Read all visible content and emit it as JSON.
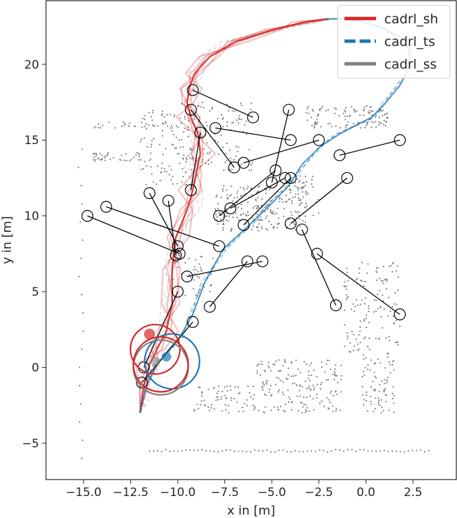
{
  "chart_data": {
    "type": "scatter",
    "xlabel": "x in [m]",
    "ylabel": "y in [m]",
    "xlim": [
      -17.0,
      4.8
    ],
    "ylim": [
      -7.4,
      24.2
    ],
    "xticks": [
      -15.0,
      -12.5,
      -10.0,
      -7.5,
      -5.0,
      -2.5,
      0.0,
      2.5
    ],
    "yticks": [
      -5,
      0,
      5,
      10,
      15,
      20
    ],
    "xtick_labels": [
      "−15.0",
      "−12.5",
      "−10.0",
      "−7.5",
      "−5.0",
      "−2.5",
      "0.0",
      "2.5"
    ],
    "ytick_labels": [
      "−5",
      "0",
      "5",
      "10",
      "15",
      "20"
    ],
    "grid": false,
    "legend_position": "top-right",
    "series": [
      {
        "name": "cadrl_sh",
        "color": "#d62728",
        "line_style": "solid",
        "x": [
          -12.0,
          -11.8,
          -11.5,
          -11.1,
          -10.6,
          -10.3,
          -10.3,
          -10.1,
          -9.5,
          -9.2,
          -9.0,
          -8.8,
          -8.9,
          -9.3,
          -9.5,
          -9.4,
          -9.1,
          -8.3,
          -6.9,
          -4.9,
          -3.2,
          -2.0
        ],
        "y": [
          -3.0,
          -1.2,
          0.2,
          1.2,
          2.4,
          4.2,
          6.5,
          8.6,
          10.4,
          11.7,
          12.9,
          14.1,
          15.3,
          16.5,
          17.4,
          18.4,
          19.4,
          20.5,
          21.5,
          22.3,
          22.8,
          23.0
        ]
      },
      {
        "name": "cadrl_ts",
        "color": "#1f77b4",
        "line_style": "dashed",
        "x": [
          -12.0,
          -11.7,
          -11.2,
          -10.6,
          -9.9,
          -9.2,
          -8.6,
          -7.6,
          -6.2,
          -5.1,
          -4.1,
          -3.4,
          -2.4,
          -1.4,
          -0.5,
          0.3,
          1.0,
          1.8,
          2.3,
          2.3,
          1.8,
          0.9,
          -0.2,
          -1.3,
          -2.1
        ],
        "y": [
          -3.0,
          -1.3,
          0.0,
          1.0,
          2.0,
          3.5,
          5.5,
          7.8,
          9.4,
          10.7,
          12.0,
          13.4,
          14.6,
          15.4,
          16.0,
          16.5,
          17.4,
          18.6,
          19.8,
          20.9,
          21.8,
          22.4,
          22.8,
          23.0,
          23.0
        ]
      },
      {
        "name": "cadrl_ss",
        "color": "#7f7f7f",
        "line_style": "solid"
      }
    ],
    "pedestrians": [
      [
        [
          -14.8,
          10.0
        ],
        [
          -9.9,
          7.5
        ]
      ],
      [
        [
          -13.8,
          10.6
        ],
        [
          -7.8,
          8.0
        ]
      ],
      [
        [
          -10.5,
          11.0
        ],
        [
          -10.1,
          7.4
        ]
      ],
      [
        [
          -11.5,
          11.5
        ],
        [
          -10.0,
          8.0
        ]
      ],
      [
        [
          -9.5,
          6.0
        ],
        [
          -5.5,
          7.0
        ]
      ],
      [
        [
          -10.0,
          5.0
        ],
        [
          -11.8,
          0.0
        ]
      ],
      [
        [
          -9.2,
          3.0
        ],
        [
          -11.9,
          -1.0
        ]
      ],
      [
        [
          -8.3,
          4.0
        ],
        [
          -6.3,
          7.0
        ]
      ],
      [
        [
          -9.2,
          18.3
        ],
        [
          -6.0,
          16.5
        ]
      ],
      [
        [
          -9.3,
          17.0
        ],
        [
          -7.0,
          13.2
        ]
      ],
      [
        [
          -8.8,
          15.5
        ],
        [
          -9.3,
          11.7
        ]
      ],
      [
        [
          -8.0,
          15.8
        ],
        [
          -4.0,
          15.0
        ]
      ],
      [
        [
          -6.5,
          13.5
        ],
        [
          -2.5,
          15.0
        ]
      ],
      [
        [
          -7.8,
          10.0
        ],
        [
          -4.8,
          13.0
        ]
      ],
      [
        [
          -7.2,
          10.5
        ],
        [
          -4.3,
          12.5
        ]
      ],
      [
        [
          -6.5,
          9.4
        ],
        [
          -4.0,
          12.5
        ]
      ],
      [
        [
          -5.0,
          12.2
        ],
        [
          -4.1,
          17.0
        ]
      ],
      [
        [
          -4.0,
          9.5
        ],
        [
          -1.0,
          12.5
        ]
      ],
      [
        [
          -3.4,
          9.1
        ],
        [
          -1.6,
          4.1
        ]
      ],
      [
        [
          -2.6,
          7.5
        ],
        [
          1.8,
          3.5
        ]
      ],
      [
        [
          -1.4,
          14.0
        ],
        [
          1.8,
          15.0
        ]
      ]
    ]
  }
}
